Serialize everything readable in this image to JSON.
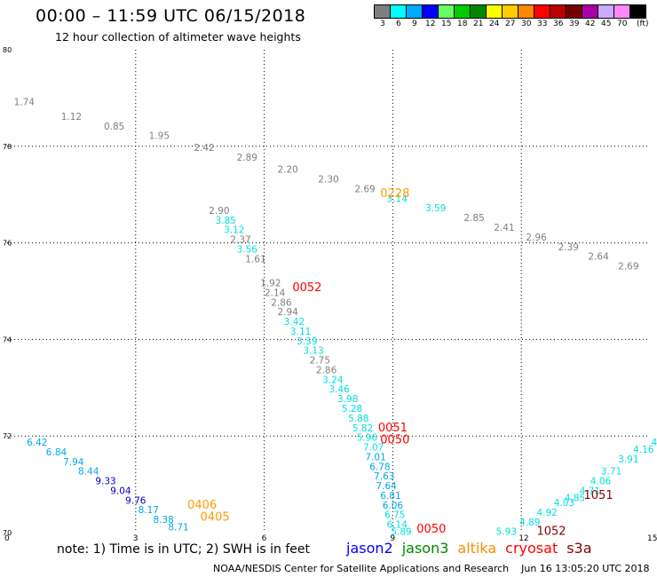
{
  "title": "00:00 – 11:59 UTC 06/15/2018",
  "subtitle": "12 hour collection of altimeter wave heights",
  "legend": {
    "unit_label": "(ft)",
    "bins": [
      {
        "label": "3",
        "color": "#7f7f7f"
      },
      {
        "label": "6",
        "color": "#00ffff"
      },
      {
        "label": "9",
        "color": "#00aaff"
      },
      {
        "label": "12",
        "color": "#0000ff"
      },
      {
        "label": "15",
        "color": "#66ff66"
      },
      {
        "label": "18",
        "color": "#00cc00"
      },
      {
        "label": "21",
        "color": "#008800"
      },
      {
        "label": "24",
        "color": "#ffff00"
      },
      {
        "label": "27",
        "color": "#ffcc00"
      },
      {
        "label": "30",
        "color": "#ff8800"
      },
      {
        "label": "33",
        "color": "#ff0000"
      },
      {
        "label": "36",
        "color": "#bb0000"
      },
      {
        "label": "39",
        "color": "#770000"
      },
      {
        "label": "42",
        "color": "#aa00aa"
      },
      {
        "label": "45",
        "color": "#ccaaff"
      },
      {
        "label": "70",
        "color": "#ff88ff"
      },
      {
        "label": "",
        "color": "#000000"
      }
    ]
  },
  "axes": {
    "x_range": [
      0,
      15
    ],
    "y_range": [
      70,
      80
    ],
    "x_ticks": [
      "0",
      "3",
      "6",
      "9",
      "12",
      "15"
    ],
    "y_ticks": [
      "70",
      "72",
      "74",
      "76",
      "78",
      "80"
    ],
    "grid": "dotted"
  },
  "colors": {
    "grey": "#7f7f7f",
    "cyan": "#00e0e0",
    "blue": "#00a8e8",
    "navy": "#0000c8",
    "orange": "#ff9900",
    "red": "#ff0000",
    "darkred": "#880000"
  },
  "observations": [
    {
      "lon": 0.4,
      "lat": 78.85,
      "value": "1.74",
      "color": "grey"
    },
    {
      "lon": 1.5,
      "lat": 78.55,
      "value": "1.12",
      "color": "grey"
    },
    {
      "lon": 2.5,
      "lat": 78.35,
      "value": "0.85",
      "color": "grey"
    },
    {
      "lon": 3.55,
      "lat": 78.15,
      "value": "1.95",
      "color": "grey"
    },
    {
      "lon": 4.6,
      "lat": 77.9,
      "value": "2.42",
      "color": "grey"
    },
    {
      "lon": 5.6,
      "lat": 77.7,
      "value": "2.89",
      "color": "grey"
    },
    {
      "lon": 6.55,
      "lat": 77.45,
      "value": "2.20",
      "color": "grey"
    },
    {
      "lon": 7.5,
      "lat": 77.25,
      "value": "2.30",
      "color": "grey"
    },
    {
      "lon": 8.35,
      "lat": 77.05,
      "value": "2.69",
      "color": "grey"
    },
    {
      "lon": 9.1,
      "lat": 76.85,
      "value": "3.14",
      "color": "cyan"
    },
    {
      "lon": 10.0,
      "lat": 76.65,
      "value": "3.59",
      "color": "cyan"
    },
    {
      "lon": 10.9,
      "lat": 76.45,
      "value": "2.85",
      "color": "grey"
    },
    {
      "lon": 11.6,
      "lat": 76.25,
      "value": "2.41",
      "color": "grey"
    },
    {
      "lon": 12.35,
      "lat": 76.05,
      "value": "2.96",
      "color": "grey"
    },
    {
      "lon": 13.1,
      "lat": 75.85,
      "value": "2.39",
      "color": "grey"
    },
    {
      "lon": 13.8,
      "lat": 75.65,
      "value": "2.64",
      "color": "grey"
    },
    {
      "lon": 14.5,
      "lat": 75.45,
      "value": "2.69",
      "color": "grey"
    },
    {
      "lon": 4.95,
      "lat": 76.6,
      "value": "2.90",
      "color": "grey"
    },
    {
      "lon": 5.1,
      "lat": 76.4,
      "value": "3.85",
      "color": "cyan"
    },
    {
      "lon": 5.3,
      "lat": 76.2,
      "value": "3.12",
      "color": "cyan"
    },
    {
      "lon": 5.45,
      "lat": 76.0,
      "value": "2.37",
      "color": "grey"
    },
    {
      "lon": 5.6,
      "lat": 75.8,
      "value": "3.56",
      "color": "cyan"
    },
    {
      "lon": 5.8,
      "lat": 75.6,
      "value": "1.61",
      "color": "grey"
    },
    {
      "lon": 6.15,
      "lat": 75.1,
      "value": "1.92",
      "color": "grey"
    },
    {
      "lon": 6.25,
      "lat": 74.9,
      "value": "2.14",
      "color": "grey"
    },
    {
      "lon": 6.4,
      "lat": 74.7,
      "value": "2.86",
      "color": "grey"
    },
    {
      "lon": 6.55,
      "lat": 74.5,
      "value": "2.94",
      "color": "grey"
    },
    {
      "lon": 6.7,
      "lat": 74.3,
      "value": "3.42",
      "color": "cyan"
    },
    {
      "lon": 6.85,
      "lat": 74.1,
      "value": "3.11",
      "color": "cyan"
    },
    {
      "lon": 7.0,
      "lat": 73.9,
      "value": "3.39",
      "color": "cyan"
    },
    {
      "lon": 7.15,
      "lat": 73.7,
      "value": "3.13",
      "color": "cyan"
    },
    {
      "lon": 7.3,
      "lat": 73.5,
      "value": "2.75",
      "color": "grey"
    },
    {
      "lon": 7.45,
      "lat": 73.3,
      "value": "2.86",
      "color": "grey"
    },
    {
      "lon": 7.6,
      "lat": 73.1,
      "value": "3.24",
      "color": "cyan"
    },
    {
      "lon": 7.75,
      "lat": 72.9,
      "value": "3.46",
      "color": "cyan"
    },
    {
      "lon": 7.95,
      "lat": 72.7,
      "value": "3.98",
      "color": "cyan"
    },
    {
      "lon": 8.05,
      "lat": 72.5,
      "value": "5.28",
      "color": "cyan"
    },
    {
      "lon": 8.2,
      "lat": 72.3,
      "value": "5.88",
      "color": "cyan"
    },
    {
      "lon": 8.3,
      "lat": 72.1,
      "value": "5.82",
      "color": "cyan"
    },
    {
      "lon": 8.4,
      "lat": 71.9,
      "value": "5.96",
      "color": "cyan"
    },
    {
      "lon": 8.55,
      "lat": 71.7,
      "value": "7.07",
      "color": "cyan"
    },
    {
      "lon": 8.6,
      "lat": 71.5,
      "value": "7.01",
      "color": "blue"
    },
    {
      "lon": 8.7,
      "lat": 71.3,
      "value": "6.78",
      "color": "blue"
    },
    {
      "lon": 8.8,
      "lat": 71.1,
      "value": "7.63",
      "color": "blue"
    },
    {
      "lon": 8.85,
      "lat": 70.9,
      "value": "7.64",
      "color": "blue"
    },
    {
      "lon": 8.95,
      "lat": 70.7,
      "value": "6.81",
      "color": "blue"
    },
    {
      "lon": 9.0,
      "lat": 70.5,
      "value": "6.06",
      "color": "blue"
    },
    {
      "lon": 9.05,
      "lat": 70.3,
      "value": "6.75",
      "color": "cyan"
    },
    {
      "lon": 9.1,
      "lat": 70.1,
      "value": "6.14",
      "color": "cyan"
    },
    {
      "lon": 9.2,
      "lat": 69.95,
      "value": "5.89",
      "color": "cyan"
    },
    {
      "lon": 0.7,
      "lat": 71.8,
      "value": "6.42",
      "color": "blue"
    },
    {
      "lon": 1.15,
      "lat": 71.6,
      "value": "6.84",
      "color": "blue"
    },
    {
      "lon": 1.55,
      "lat": 71.4,
      "value": "7.94",
      "color": "blue"
    },
    {
      "lon": 1.9,
      "lat": 71.2,
      "value": "8.44",
      "color": "blue"
    },
    {
      "lon": 2.3,
      "lat": 71.0,
      "value": "9.33",
      "color": "navy"
    },
    {
      "lon": 2.65,
      "lat": 70.8,
      "value": "9.04",
      "color": "navy"
    },
    {
      "lon": 3.0,
      "lat": 70.6,
      "value": "9.76",
      "color": "navy"
    },
    {
      "lon": 3.3,
      "lat": 70.4,
      "value": "8.17",
      "color": "blue"
    },
    {
      "lon": 3.65,
      "lat": 70.2,
      "value": "8.38",
      "color": "blue"
    },
    {
      "lon": 4.0,
      "lat": 70.05,
      "value": "8.71",
      "color": "blue"
    },
    {
      "lon": 11.65,
      "lat": 69.95,
      "value": "5.93",
      "color": "cyan"
    },
    {
      "lon": 12.2,
      "lat": 70.15,
      "value": "4.89",
      "color": "cyan"
    },
    {
      "lon": 12.6,
      "lat": 70.35,
      "value": "4.92",
      "color": "cyan"
    },
    {
      "lon": 13.0,
      "lat": 70.55,
      "value": "4.03",
      "color": "cyan"
    },
    {
      "lon": 13.25,
      "lat": 70.65,
      "value": "4.85",
      "color": "cyan"
    },
    {
      "lon": 13.6,
      "lat": 70.8,
      "value": "4.71",
      "color": "cyan"
    },
    {
      "lon": 13.85,
      "lat": 71.0,
      "value": "4.06",
      "color": "cyan"
    },
    {
      "lon": 14.1,
      "lat": 71.2,
      "value": "3.71",
      "color": "cyan"
    },
    {
      "lon": 14.5,
      "lat": 71.45,
      "value": "3.91",
      "color": "cyan"
    },
    {
      "lon": 14.85,
      "lat": 71.65,
      "value": "4.16",
      "color": "cyan"
    },
    {
      "lon": 15.1,
      "lat": 71.8,
      "value": "4",
      "color": "cyan"
    }
  ],
  "time_labels": [
    {
      "lon": 9.05,
      "lat": 76.95,
      "text": "0228",
      "color": "orange"
    },
    {
      "lon": 7.0,
      "lat": 75.0,
      "text": "0052",
      "color": "red"
    },
    {
      "lon": 9.0,
      "lat": 72.1,
      "text": "0051",
      "color": "red"
    },
    {
      "lon": 9.05,
      "lat": 71.85,
      "text": "0050",
      "color": "red"
    },
    {
      "lon": 9.9,
      "lat": 70.0,
      "text": "0050",
      "color": "red"
    },
    {
      "lon": 4.55,
      "lat": 70.5,
      "text": "0406",
      "color": "orange"
    },
    {
      "lon": 4.85,
      "lat": 70.25,
      "text": "0405",
      "color": "orange"
    },
    {
      "lon": 13.8,
      "lat": 70.7,
      "text": "1051",
      "color": "darkred"
    },
    {
      "lon": 12.7,
      "lat": 69.95,
      "text": "1052",
      "color": "darkred"
    }
  ],
  "notes": "note: 1) Time is in UTC; 2) SWH is in feet",
  "missions": [
    {
      "name": "jason2",
      "color": "#0000ff"
    },
    {
      "name": "jason3",
      "color": "#008800"
    },
    {
      "name": "altika",
      "color": "#ff8800"
    },
    {
      "name": "cryosat",
      "color": "#ff0000"
    },
    {
      "name": "s3a",
      "color": "#880000"
    }
  ],
  "footer": "NOAA/NESDIS Center for Satellite Applications and Research    Jun 16 13:05:20 UTC 2018"
}
